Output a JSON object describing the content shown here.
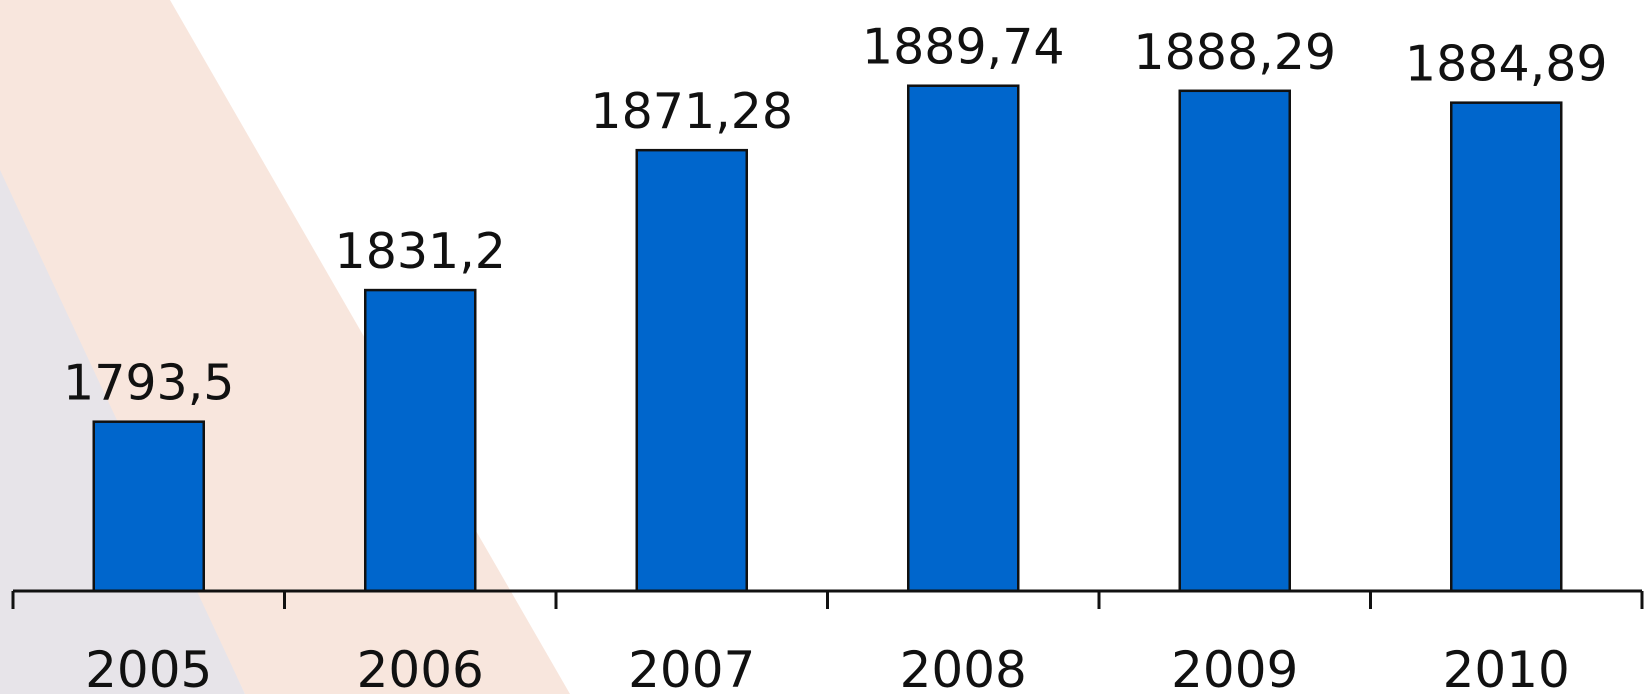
{
  "colors": {
    "bar": "#0066CC",
    "axis": "#111111",
    "background_band_gray": "#E7E4E9",
    "background_band_peach": "#F8E6DD"
  },
  "chart_data": {
    "type": "bar",
    "categories": [
      "2005",
      "2006",
      "2007",
      "2008",
      "2009",
      "2010"
    ],
    "values": [
      1793.5,
      1831.2,
      1871.28,
      1889.74,
      1888.29,
      1884.89
    ],
    "value_labels": [
      "1793,5",
      "1831,2",
      "1871,28",
      "1889,74",
      "1888,29",
      "1884,89"
    ],
    "title": "",
    "xlabel": "",
    "ylabel": "",
    "ylim": [
      1745,
      1910
    ],
    "grid": false,
    "legend": "none"
  }
}
